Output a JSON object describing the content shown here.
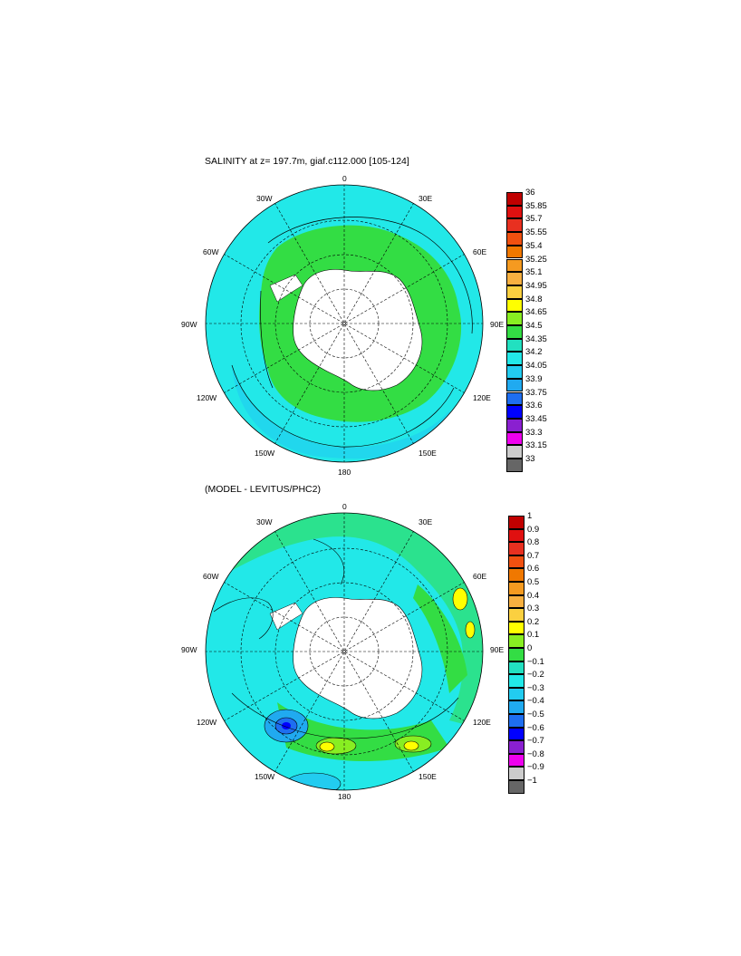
{
  "panels": [
    {
      "title": "SALINITY at z= 197.7m, giaf.c112.000 [105-124]",
      "labels": {
        "top": "0",
        "bottom": "180",
        "left": "90W",
        "right": "90E",
        "nw": "30W",
        "ne": "30E",
        "wnw": "60W",
        "ene": "60E",
        "wsw": "120W",
        "ese": "120E",
        "sw": "150W",
        "se": "150E"
      },
      "colorbar": {
        "ticks": [
          "36",
          "35.85",
          "35.7",
          "35.55",
          "35.4",
          "35.25",
          "35.1",
          "34.95",
          "34.8",
          "34.65",
          "34.5",
          "34.35",
          "34.2",
          "34.05",
          "33.9",
          "33.75",
          "33.6",
          "33.45",
          "33.3",
          "33.15",
          "33"
        ],
        "colors": [
          "#c00000",
          "#e01010",
          "#e83020",
          "#f05010",
          "#f07800",
          "#f59a20",
          "#f8b040",
          "#fbd040",
          "#ffff00",
          "#88ee22",
          "#33dd44",
          "#22e0c0",
          "#22e8e8",
          "#22ccf0",
          "#20aaf0",
          "#1e6ef0",
          "#0000ff",
          "#8a20d0",
          "#ee00ee",
          "#cccccc"
        ]
      }
    },
    {
      "title": "(MODEL - LEVITUS/PHC2)",
      "labels": {
        "top": "0",
        "bottom": "180",
        "left": "90W",
        "right": "90E",
        "nw": "30W",
        "ne": "30E",
        "wnw": "60W",
        "ene": "60E",
        "wsw": "120W",
        "ese": "120E",
        "sw": "150W",
        "se": "150E"
      },
      "colorbar": {
        "ticks": [
          "1",
          "0.9",
          "0.8",
          "0.7",
          "0.6",
          "0.5",
          "0.4",
          "0.3",
          "0.2",
          "0.1",
          "0",
          "−0.1",
          "−0.2",
          "−0.3",
          "−0.4",
          "−0.5",
          "−0.6",
          "−0.7",
          "−0.8",
          "−0.9",
          "−1"
        ],
        "colors": [
          "#c00000",
          "#e01010",
          "#e83020",
          "#f05010",
          "#f07800",
          "#f59a20",
          "#f8b040",
          "#fbd040",
          "#ffff00",
          "#88ee22",
          "#33dd44",
          "#22e0c0",
          "#22e8e8",
          "#22ccf0",
          "#20aaf0",
          "#1e6ef0",
          "#0000ff",
          "#8a20d0",
          "#ee00ee",
          "#cccccc"
        ]
      }
    }
  ]
}
